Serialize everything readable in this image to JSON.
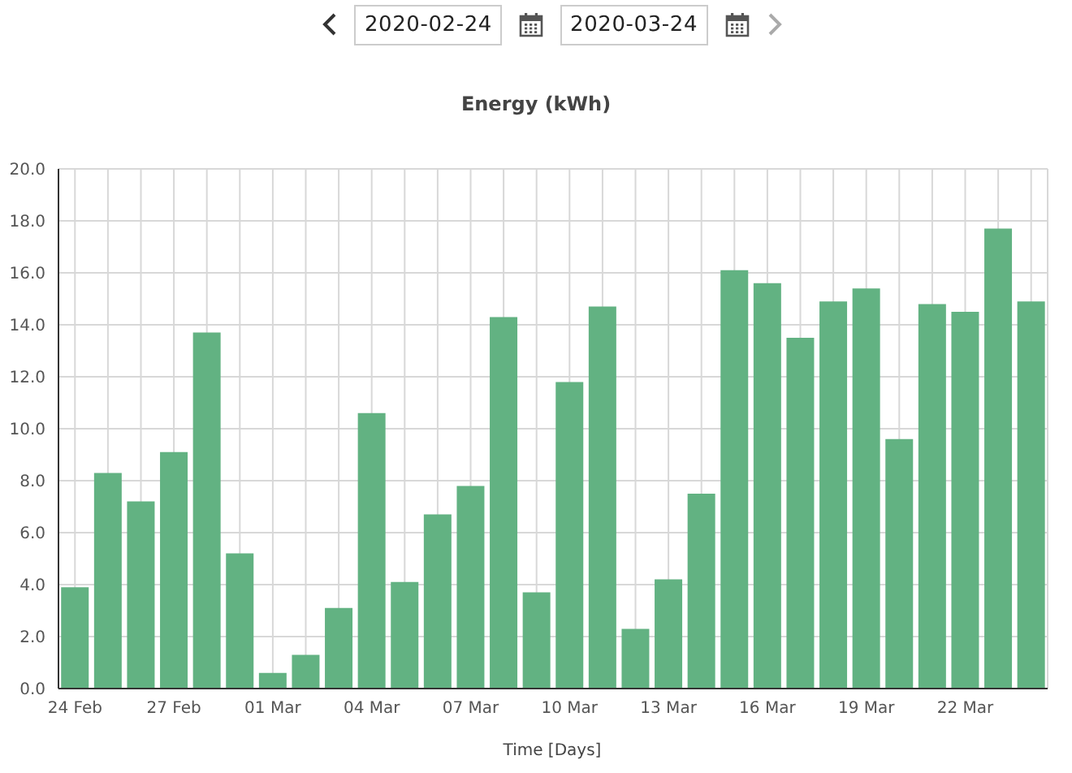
{
  "chart_data": {
    "type": "bar",
    "title": "Energy (kWh)",
    "xlabel": "Time [Days]",
    "annotations": [
      "2020-02-24",
      "2020-03-24"
    ],
    "categories": [
      "24 Feb",
      null,
      null,
      "27 Feb",
      null,
      null,
      "01 Mar",
      null,
      null,
      "04 Mar",
      null,
      null,
      "07 Mar",
      null,
      null,
      "10 Mar",
      null,
      null,
      "13 Mar",
      null,
      null,
      "16 Mar",
      null,
      null,
      "19 Mar",
      null,
      null,
      "22 Mar",
      null,
      null
    ],
    "values": [
      3.9,
      8.3,
      7.2,
      9.1,
      13.7,
      5.2,
      0.6,
      1.3,
      3.1,
      10.6,
      4.1,
      6.7,
      7.8,
      14.3,
      3.7,
      11.8,
      14.7,
      2.3,
      4.2,
      7.5,
      16.1,
      15.6,
      13.5,
      14.9,
      15.4,
      9.6,
      14.8,
      14.5,
      17.7,
      14.9
    ],
    "color": "#62b282",
    "ylim": [
      0,
      20
    ],
    "yticks": [
      {
        "value": 0,
        "label": "0.0"
      },
      {
        "value": 2,
        "label": "2.0"
      },
      {
        "value": 4,
        "label": "4.0"
      },
      {
        "value": 6,
        "label": "6.0"
      },
      {
        "value": 8,
        "label": "8.0"
      },
      {
        "value": 10,
        "label": "10.0"
      },
      {
        "value": 12,
        "label": "12.0"
      },
      {
        "value": 14,
        "label": "14.0"
      },
      {
        "value": 16,
        "label": "16.0"
      },
      {
        "value": 18,
        "label": "18.0"
      },
      {
        "value": 20,
        "label": "20.0"
      }
    ],
    "grid": true,
    "legend": false
  }
}
